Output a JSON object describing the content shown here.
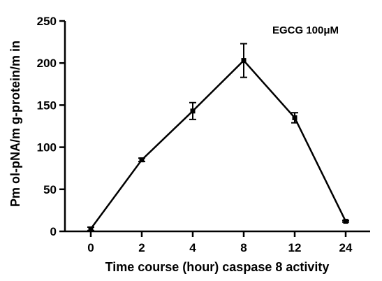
{
  "chart_data": {
    "type": "line",
    "title": "",
    "annotation": "EGCG 100μM",
    "xlabel": "Time course (hour) caspase 8 activity",
    "ylabel": "Pm ol-pNA/m g-protein/m in",
    "categories": [
      "0",
      "2",
      "4",
      "8",
      "12",
      "24"
    ],
    "series": [
      {
        "values": [
          3,
          85,
          143,
          203,
          135,
          12
        ],
        "errors": [
          2,
          2,
          10,
          20,
          6,
          1
        ]
      }
    ],
    "ylim": [
      0,
      250
    ],
    "yticks": [
      0,
      50,
      100,
      150,
      200,
      250
    ],
    "grid": false
  }
}
